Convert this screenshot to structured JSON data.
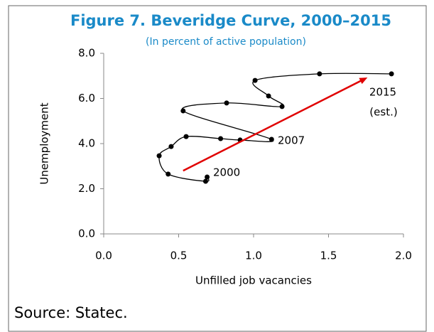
{
  "chart_data": {
    "type": "line",
    "title": "Figure 7. Beveridge Curve, 2000–2015",
    "subtitle": "(In percent of active population)",
    "xlabel": "Unfilled job vacancies",
    "ylabel": "Unemployment",
    "source": "Source: Statec.",
    "series": [
      {
        "name": "Beveridge curve",
        "color": "#000000",
        "x": [
          0.69,
          0.68,
          0.43,
          0.37,
          0.45,
          0.55,
          0.78,
          0.91,
          1.12,
          0.53,
          0.82,
          1.19,
          1.1,
          1.01,
          1.44,
          1.92
        ],
        "values": [
          2.52,
          2.33,
          2.65,
          3.46,
          3.87,
          4.31,
          4.22,
          4.16,
          4.19,
          5.45,
          5.8,
          5.64,
          6.11,
          6.8,
          7.09,
          7.09
        ]
      }
    ],
    "arrow": {
      "color": "#e00000",
      "x": [
        0.53,
        1.76
      ],
      "y": [
        2.8,
        6.93
      ]
    },
    "annotations": [
      "2000",
      "2007",
      "2015",
      "(est.)"
    ],
    "xlim": [
      0,
      2
    ],
    "xticks": [
      {
        "value": 0,
        "label": "0.0"
      },
      {
        "value": 0.5,
        "label": "0.5"
      },
      {
        "value": 1,
        "label": "1.0"
      },
      {
        "value": 1.5,
        "label": "1.5"
      },
      {
        "value": 2,
        "label": "2.0"
      }
    ],
    "ylim": [
      0,
      8
    ],
    "yticks": [
      {
        "value": 0,
        "label": "0.0"
      },
      {
        "value": 2,
        "label": "2.0"
      },
      {
        "value": 4,
        "label": "4.0"
      },
      {
        "value": 6,
        "label": "6.0"
      },
      {
        "value": 8,
        "label": "8.0"
      }
    ],
    "grid": false
  }
}
